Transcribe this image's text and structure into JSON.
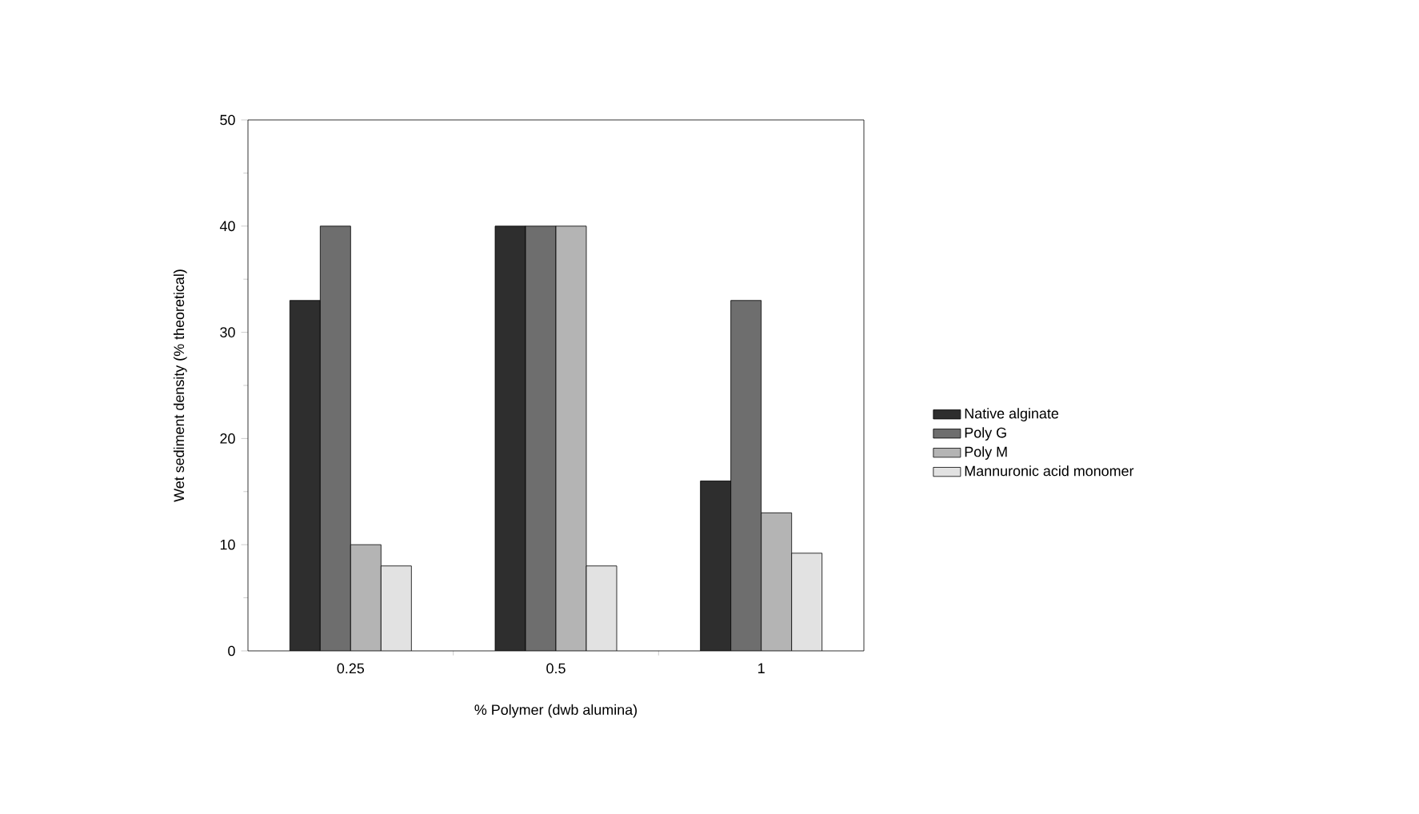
{
  "chart_data": {
    "type": "bar",
    "xlabel": "% Polymer (dwb alumina)",
    "ylabel": "Wet sediment density (% theoretical)",
    "categories": [
      "0.25",
      "0.5",
      "1"
    ],
    "series": [
      {
        "name": "Native alginate",
        "color": "#2e2e2e",
        "values": [
          33,
          40,
          16
        ]
      },
      {
        "name": "Poly G",
        "color": "#6e6e6e",
        "values": [
          40,
          40,
          33
        ]
      },
      {
        "name": "Poly M",
        "color": "#b4b4b4",
        "values": [
          10,
          40,
          13
        ]
      },
      {
        "name": "Mannuronic acid monomer",
        "color": "#e2e2e2",
        "values": [
          8,
          8,
          9.2
        ]
      }
    ],
    "ylim": [
      0,
      50
    ],
    "yticks": [
      0,
      10,
      20,
      30,
      40,
      50
    ],
    "grid": false,
    "legend": "right"
  }
}
